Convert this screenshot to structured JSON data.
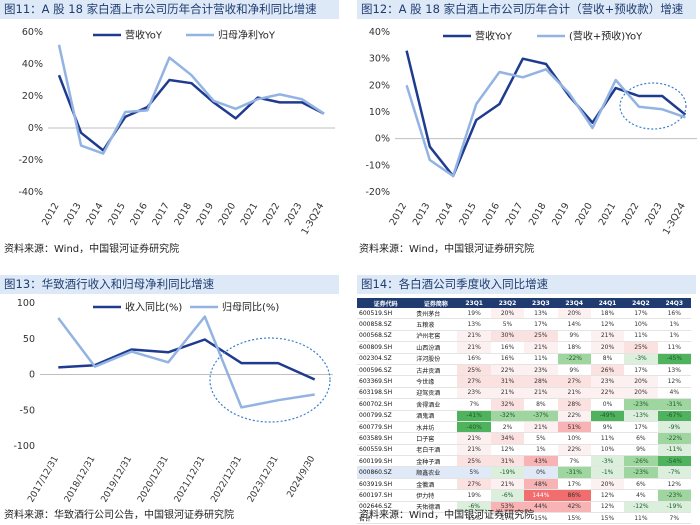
{
  "panels": {
    "p11": {
      "title": "图11：A 股 18 家白酒上市公司历年合计营收和净利同比增速",
      "source": "资料来源：Wind，中国银河证券研究院"
    },
    "p12": {
      "title": "图12：A 股 18 家白酒上市公司历年合计（营收+预收款）增速",
      "source": "资料来源：Wind，中国银河证券研究院"
    },
    "p13": {
      "title": "图13：华致酒行收入和归母净利同比增速",
      "source": "资料来源：华致酒行公司公告，中国银河证券研究院"
    },
    "p14": {
      "title": "图14：各白酒公司季度收入同比增速",
      "source": "资料来源：Wind，中国银河证券研究院"
    }
  },
  "chart_data": [
    {
      "type": "line",
      "title": "图11：A 股 18 家白酒上市公司历年合计营收和净利同比增速",
      "categories": [
        "2012",
        "2013",
        "2014",
        "2015",
        "2016",
        "2017",
        "2018",
        "2019",
        "2020",
        "2021",
        "2022",
        "2023",
        "1-3Q24"
      ],
      "y_ticks": [
        "60%",
        "40%",
        "20%",
        "0%",
        "-20%",
        "-40%"
      ],
      "ylim": [
        -40,
        60
      ],
      "series": [
        {
          "name": "营收YoY",
          "values": [
            33,
            -3,
            -14,
            7,
            13,
            30,
            28,
            16,
            6,
            19,
            16,
            16,
            9
          ],
          "color": "#1f3b8f"
        },
        {
          "name": "归母净利YoY",
          "values": [
            52,
            -11,
            -16,
            10,
            11,
            44,
            33,
            17,
            12,
            18,
            21,
            18,
            9
          ],
          "color": "#93b3e3"
        }
      ]
    },
    {
      "type": "line",
      "title": "图12：A 股 18 家白酒上市公司历年合计（营收+预收款）增速",
      "categories": [
        "2012",
        "2013",
        "2014",
        "2015",
        "2016",
        "2017",
        "2018",
        "2019",
        "2020",
        "2021",
        "2022",
        "2023",
        "1-3Q24"
      ],
      "y_ticks": [
        "40%",
        "30%",
        "20%",
        "10%",
        "0%",
        "-10%",
        "-20%"
      ],
      "ylim": [
        -20,
        40
      ],
      "series": [
        {
          "name": "营收YoY",
          "values": [
            33,
            -3,
            -14,
            7,
            13,
            30,
            28,
            16,
            6,
            19,
            16,
            16,
            9
          ],
          "color": "#1f3b8f"
        },
        {
          "name": "(营收+预收)YoY",
          "values": [
            20,
            -8,
            -14,
            13,
            25,
            23,
            26,
            17,
            4,
            22,
            12,
            11,
            8
          ],
          "color": "#93b3e3"
        }
      ]
    },
    {
      "type": "line",
      "title": "图13：华致酒行收入和归母净利同比增速",
      "categories": [
        "2017/12/31",
        "2018/12/31",
        "2019/12/31",
        "2020/12/31",
        "2021/12/31",
        "2022/12/31",
        "2023/12/31",
        "2024/9/30"
      ],
      "y_ticks": [
        "100",
        "50",
        "0",
        "-50",
        "-100"
      ],
      "ylim": [
        -100,
        100
      ],
      "series": [
        {
          "name": "收入同比(%)",
          "values": [
            10,
            13,
            35,
            31,
            49,
            16,
            16,
            -7
          ],
          "color": "#1f3b8f"
        },
        {
          "name": "归母同比(%)",
          "values": [
            79,
            11,
            32,
            17,
            81,
            -46,
            -36,
            -28
          ],
          "color": "#93b3e3"
        }
      ]
    },
    {
      "type": "table",
      "title": "图14：各白酒公司季度收入同比增速",
      "columns": [
        "证券代码",
        "证券简称",
        "23Q1",
        "23Q2",
        "23Q3",
        "23Q4",
        "24Q1",
        "24Q2",
        "24Q3"
      ],
      "rows": [
        [
          "600519.SH",
          "贵州茅台",
          "19%",
          "20%",
          "13%",
          "20%",
          "18%",
          "17%",
          "16%"
        ],
        [
          "000858.SZ",
          "五粮液",
          "13%",
          "5%",
          "17%",
          "14%",
          "12%",
          "10%",
          "1%"
        ],
        [
          "000568.SZ",
          "泸州老窖",
          "21%",
          "30%",
          "25%",
          "9%",
          "21%",
          "11%",
          "1%"
        ],
        [
          "600809.SH",
          "山西汾酒",
          "21%",
          "16%",
          "21%",
          "18%",
          "20%",
          "25%",
          "11%"
        ],
        [
          "002304.SZ",
          "洋河股份",
          "16%",
          "16%",
          "11%",
          "-22%",
          "8%",
          "-3%",
          "-45%"
        ],
        [
          "000596.SZ",
          "古井贡酒",
          "25%",
          "22%",
          "23%",
          "9%",
          "26%",
          "17%",
          "13%"
        ],
        [
          "603369.SH",
          "今世缘",
          "27%",
          "31%",
          "28%",
          "27%",
          "23%",
          "20%",
          "12%"
        ],
        [
          "603198.SH",
          "迎驾贡酒",
          "23%",
          "21%",
          "21%",
          "21%",
          "22%",
          "20%",
          "4%"
        ],
        [
          "600702.SH",
          "舍得酒业",
          "7%",
          "32%",
          "8%",
          "28%",
          "0%",
          "-23%",
          "-31%"
        ],
        [
          "000799.SZ",
          "酒鬼酒",
          "-41%",
          "-32%",
          "-37%",
          "22%",
          "-49%",
          "-13%",
          "-67%"
        ],
        [
          "600779.SH",
          "水井坊",
          "-40%",
          "2%",
          "21%",
          "51%",
          "9%",
          "17%",
          "-9%"
        ],
        [
          "603589.SH",
          "口子窖",
          "21%",
          "34%",
          "5%",
          "10%",
          "11%",
          "6%",
          "-22%"
        ],
        [
          "600559.SH",
          "老白干酒",
          "21%",
          "12%",
          "1%",
          "22%",
          "10%",
          "9%",
          "-11%"
        ],
        [
          "600199.SH",
          "金种子酒",
          "25%",
          "31%",
          "43%",
          "7%",
          "-3%",
          "-26%",
          "-54%"
        ],
        [
          "000860.SZ",
          "顺鑫农业",
          "5%",
          "-19%",
          "0%",
          "-31%",
          "-1%",
          "-23%",
          "-7%"
        ],
        [
          "603919.SH",
          "金徽酒",
          "27%",
          "21%",
          "48%",
          "17%",
          "20%",
          "6%",
          "12%"
        ],
        [
          "600197.SH",
          "伊力特",
          "19%",
          "-6%",
          "144%",
          "86%",
          "12%",
          "4%",
          "-23%"
        ],
        [
          "002646.SZ",
          "天佑德酒",
          "-6%",
          "53%",
          "44%",
          "42%",
          "12%",
          "-12%",
          "-19%"
        ],
        [
          "合计",
          "",
          "15%",
          "17%",
          "15%",
          "15%",
          "15%",
          "11%",
          "7%"
        ]
      ]
    }
  ]
}
